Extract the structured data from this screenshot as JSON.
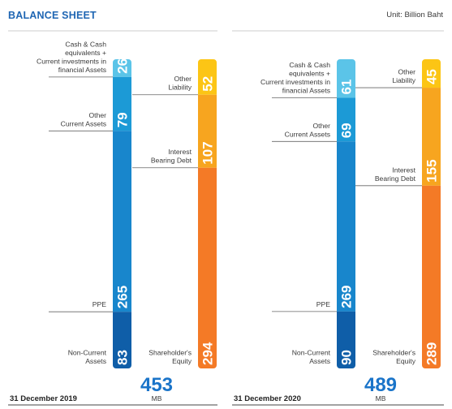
{
  "title": "BALANCE SHEET",
  "unit_label": "Unit: Billion Baht",
  "chart_data": {
    "type": "bar",
    "stacked": true,
    "title": "BALANCE SHEET",
    "unit": "Unit: Billion Baht",
    "panels": [
      {
        "period": "31 December 2019",
        "total": "453",
        "total_unit": "MB",
        "assets": [
          {
            "label": [
              "Cash & Cash",
              "equivalents +",
              "Current investments in",
              "financial Assets"
            ],
            "value": 26,
            "color": "#5bc4e8"
          },
          {
            "label": [
              "Other",
              "Current Assets"
            ],
            "value": 79,
            "color": "#1c9ad6"
          },
          {
            "label": [
              "PPE"
            ],
            "value": 265,
            "color": "#1886cc"
          },
          {
            "label": [
              "Non-Current",
              "Assets"
            ],
            "value": 83,
            "color": "#0f5ea8"
          }
        ],
        "liabilities_equity": [
          {
            "label": [
              "Other",
              "Liability"
            ],
            "value": 52,
            "color": "#fcc515"
          },
          {
            "label": [
              "Interest",
              "Bearing Debt"
            ],
            "value": 107,
            "color": "#f7a51f"
          },
          {
            "label": [
              "Shareholder's",
              "Equity"
            ],
            "value": 294,
            "color": "#f47a26"
          }
        ]
      },
      {
        "period": "31 December 2020",
        "total": "489",
        "total_unit": "MB",
        "assets": [
          {
            "label": [
              "Cash & Cash",
              "equivalents +",
              "Current investments in",
              "financial Assets"
            ],
            "value": 61,
            "color": "#5bc4e8"
          },
          {
            "label": [
              "Other",
              "Current Assets"
            ],
            "value": 69,
            "color": "#1c9ad6"
          },
          {
            "label": [
              "PPE"
            ],
            "value": 269,
            "color": "#1886cc"
          },
          {
            "label": [
              "Non-Current",
              "Assets"
            ],
            "value": 90,
            "color": "#0f5ea8"
          }
        ],
        "liabilities_equity": [
          {
            "label": [
              "Other",
              "Liability"
            ],
            "value": 45,
            "color": "#fcc515"
          },
          {
            "label": [
              "Interest",
              "Bearing Debt"
            ],
            "value": 155,
            "color": "#f7a51f"
          },
          {
            "label": [
              "Shareholder's",
              "Equity"
            ],
            "value": 289,
            "color": "#f47a26"
          }
        ]
      }
    ],
    "total_color": "#1a74c9",
    "label_color": "#3a3a3a"
  }
}
